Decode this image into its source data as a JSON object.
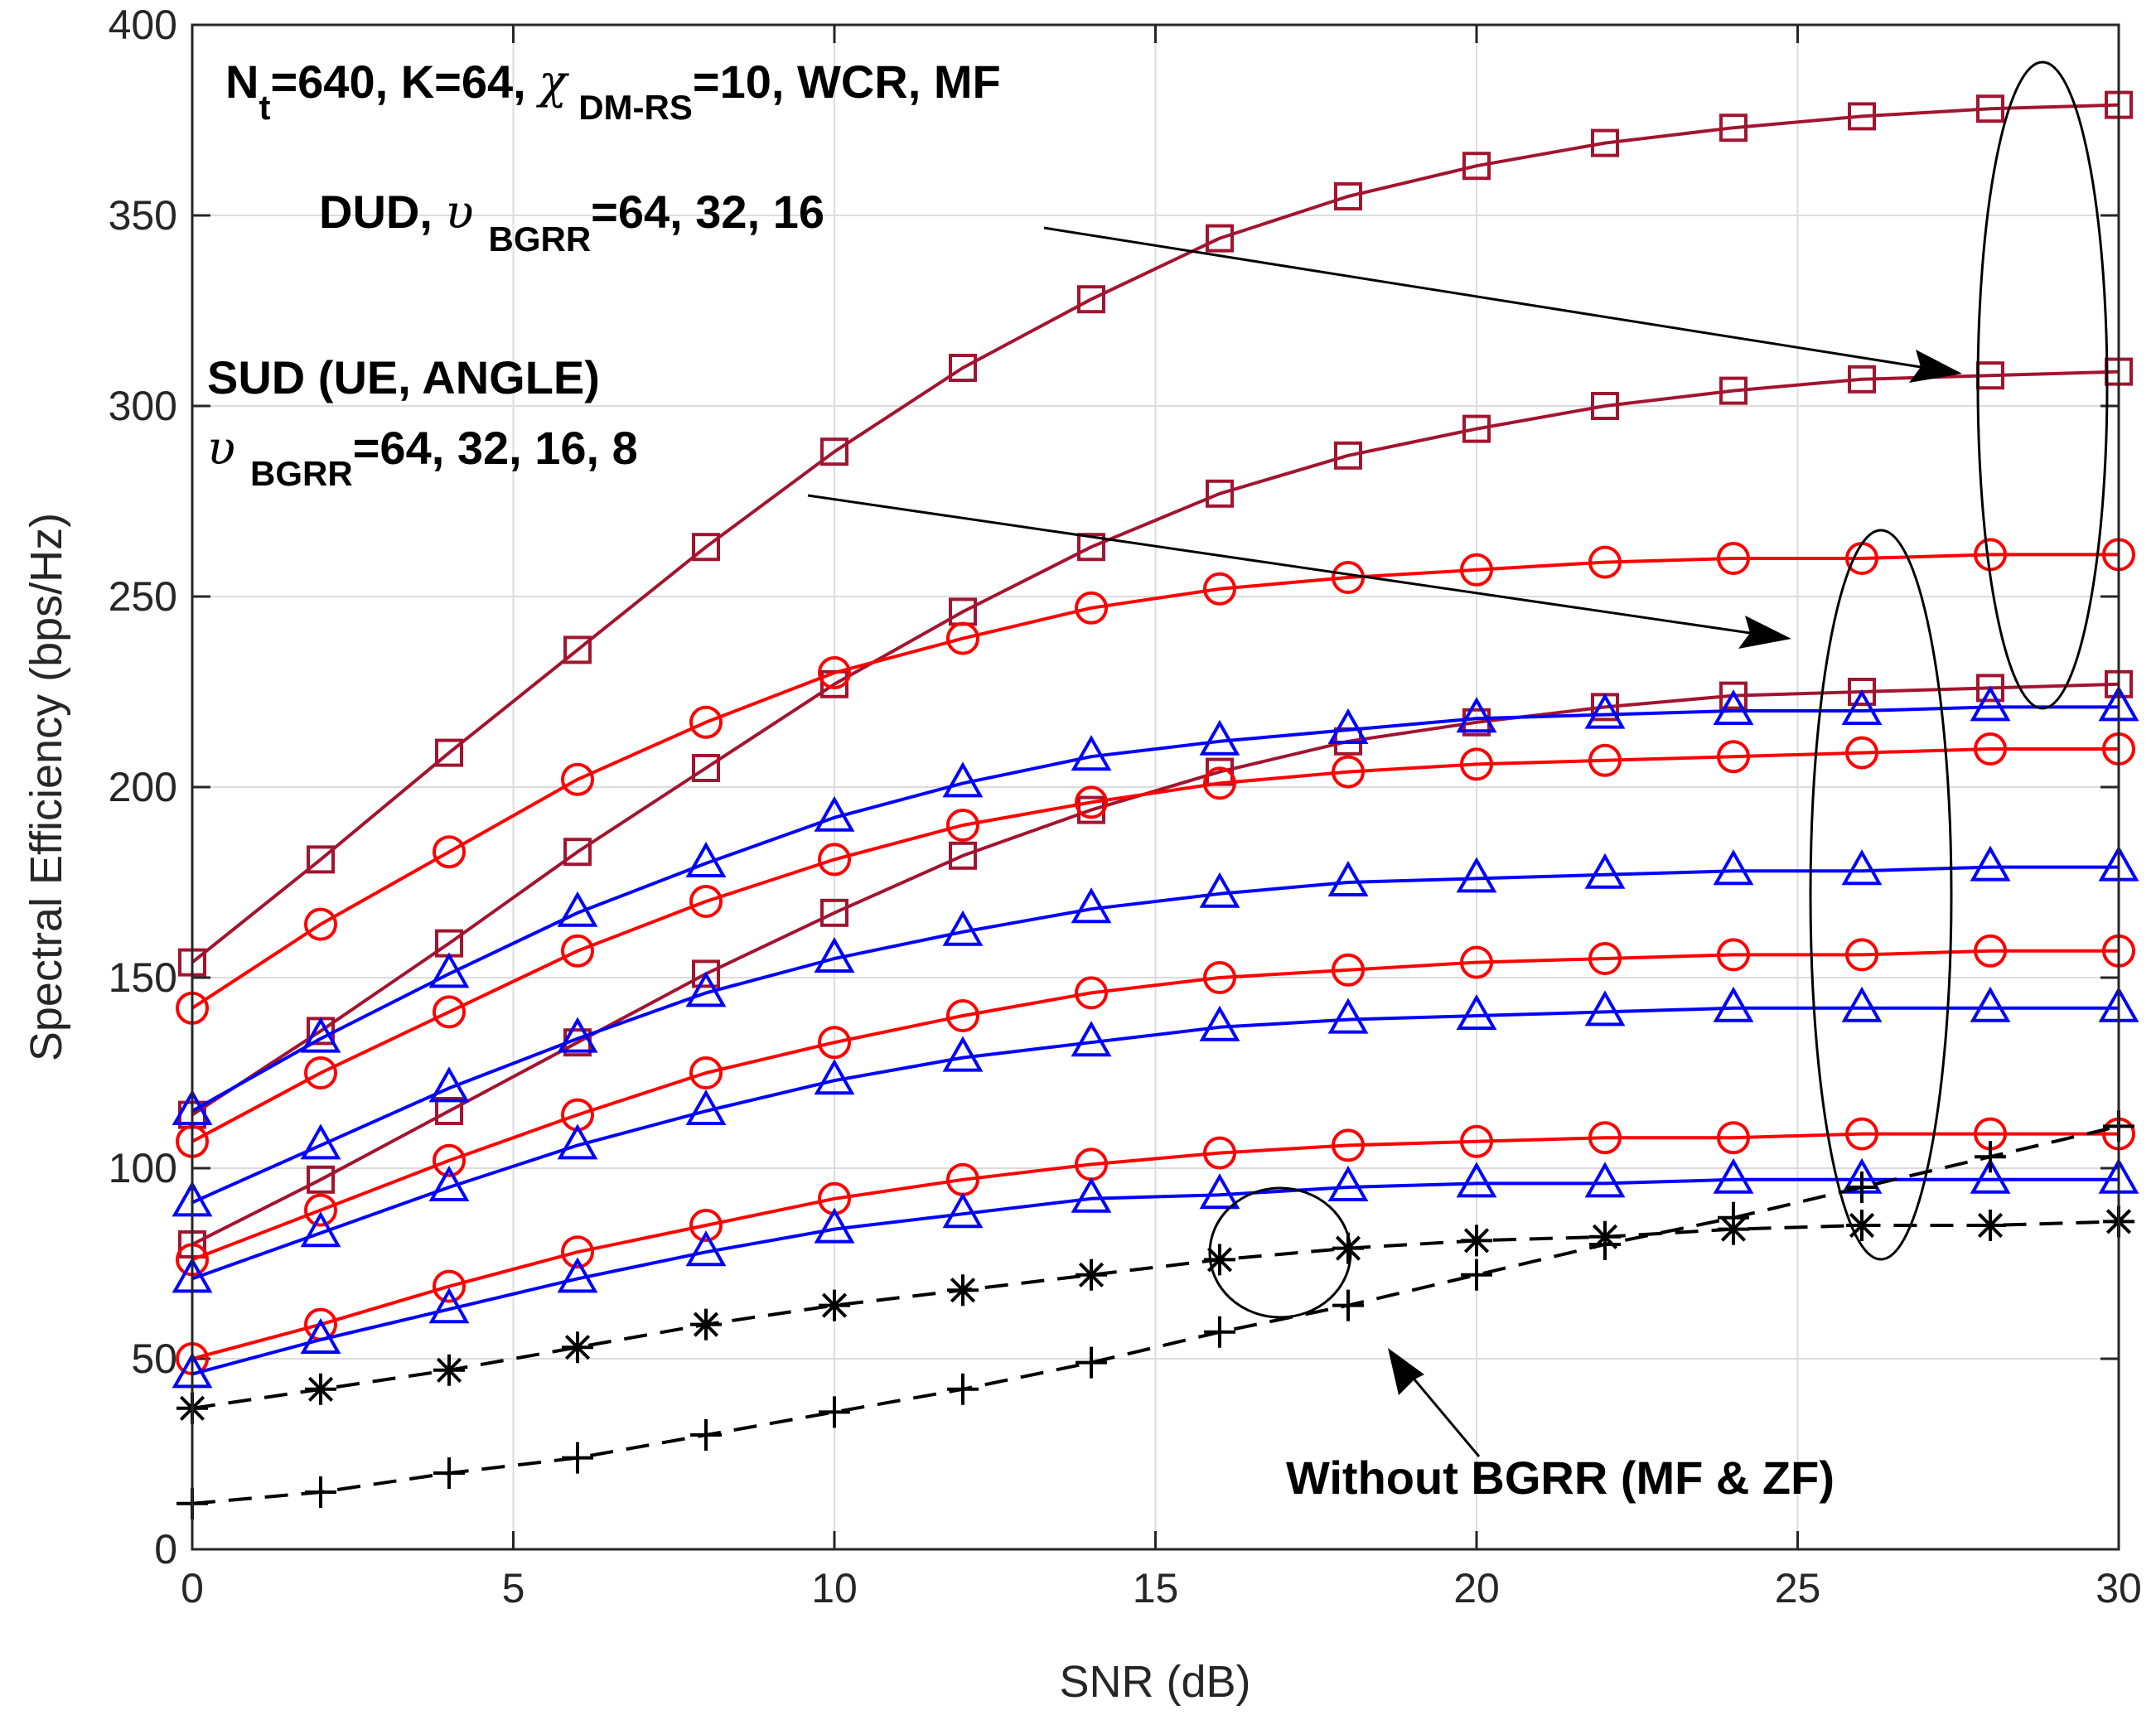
{
  "chart_data": {
    "type": "line",
    "xlabel": "SNR (dB)",
    "ylabel": "Spectral Efficiency (bps/Hz)",
    "xlim": [
      0,
      30
    ],
    "ylim": [
      0,
      400
    ],
    "xticks": [
      "0",
      "5",
      "10",
      "15",
      "20",
      "25",
      "30"
    ],
    "yticks": [
      "0",
      "50",
      "100",
      "150",
      "200",
      "250",
      "300",
      "350",
      "400"
    ],
    "grid": true,
    "x": [
      0,
      2,
      4,
      6,
      8,
      10,
      12,
      14,
      16,
      18,
      20,
      22,
      24,
      26,
      28,
      30
    ],
    "colors": {
      "dud": "#A2142F",
      "sud_red": "#FF0000",
      "sud_blue": "#0000FF",
      "black": "#000000"
    },
    "series": [
      {
        "name": "DUD BGRR=64",
        "group": "DUD",
        "marker": "square",
        "color": "#A2142F",
        "linestyle": "solid",
        "values": [
          154,
          181,
          209,
          236,
          263,
          288,
          310,
          328,
          344,
          355,
          363,
          369,
          373,
          376,
          378,
          379
        ]
      },
      {
        "name": "DUD BGRR=32",
        "group": "DUD",
        "marker": "square",
        "color": "#A2142F",
        "linestyle": "solid",
        "values": [
          114,
          136,
          159,
          183,
          205,
          227,
          246,
          263,
          277,
          287,
          294,
          300,
          304,
          307,
          308,
          309
        ]
      },
      {
        "name": "DUD BGRR=16",
        "group": "DUD",
        "marker": "square",
        "color": "#A2142F",
        "linestyle": "solid",
        "values": [
          80,
          97,
          115,
          133,
          151,
          167,
          182,
          194,
          204,
          212,
          217,
          221,
          224,
          225,
          226,
          227
        ]
      },
      {
        "name": "SUD (UE) BGRR=64",
        "group": "SUD",
        "marker": "circle",
        "color": "#FF0000",
        "linestyle": "solid",
        "values": [
          142,
          164,
          183,
          202,
          217,
          230,
          239,
          247,
          252,
          255,
          257,
          259,
          260,
          260,
          261,
          261
        ]
      },
      {
        "name": "SUD (UE) BGRR=32",
        "group": "SUD",
        "marker": "circle",
        "color": "#FF0000",
        "linestyle": "solid",
        "values": [
          107,
          125,
          141,
          157,
          170,
          181,
          190,
          196,
          201,
          204,
          206,
          207,
          208,
          209,
          210,
          210
        ]
      },
      {
        "name": "SUD (UE) BGRR=16",
        "group": "SUD",
        "marker": "circle",
        "color": "#FF0000",
        "linestyle": "solid",
        "values": [
          76,
          89,
          102,
          114,
          125,
          133,
          140,
          146,
          150,
          152,
          154,
          155,
          156,
          156,
          157,
          157
        ]
      },
      {
        "name": "SUD (UE) BGRR=8",
        "group": "SUD",
        "marker": "circle",
        "color": "#FF0000",
        "linestyle": "solid",
        "values": [
          50,
          59,
          69,
          78,
          85,
          92,
          97,
          101,
          104,
          106,
          107,
          108,
          108,
          109,
          109,
          109
        ]
      },
      {
        "name": "SUD (ANGLE) BGRR=64",
        "group": "SUD",
        "marker": "triangle",
        "color": "#0000FF",
        "linestyle": "solid",
        "values": [
          115,
          134,
          151,
          167,
          180,
          192,
          201,
          208,
          212,
          215,
          218,
          219,
          220,
          220,
          221,
          221
        ]
      },
      {
        "name": "SUD (ANGLE) BGRR=32",
        "group": "SUD",
        "marker": "triangle",
        "color": "#0000FF",
        "linestyle": "solid",
        "values": [
          91,
          106,
          121,
          134,
          146,
          155,
          162,
          168,
          172,
          175,
          176,
          177,
          178,
          178,
          179,
          179
        ]
      },
      {
        "name": "SUD (ANGLE) BGRR=16",
        "group": "SUD",
        "marker": "triangle",
        "color": "#0000FF",
        "linestyle": "solid",
        "values": [
          71,
          83,
          95,
          106,
          115,
          123,
          129,
          133,
          137,
          139,
          140,
          141,
          142,
          142,
          142,
          142
        ]
      },
      {
        "name": "SUD (ANGLE) BGRR=8",
        "group": "SUD",
        "marker": "triangle",
        "color": "#0000FF",
        "linestyle": "solid",
        "values": [
          46,
          55,
          63,
          71,
          78,
          84,
          88,
          92,
          93,
          95,
          96,
          96,
          97,
          97,
          97,
          97
        ]
      },
      {
        "name": "Without BGRR (MF)",
        "group": "Without",
        "marker": "asterisk",
        "color": "#000000",
        "linestyle": "dashed",
        "values": [
          37,
          42,
          47,
          53,
          59,
          64,
          68,
          72,
          76,
          79,
          81,
          82,
          84,
          85,
          85,
          86
        ]
      },
      {
        "name": "Without BGRR (ZF)",
        "group": "Without",
        "marker": "plus",
        "color": "#000000",
        "linestyle": "dashed",
        "values": [
          12,
          15,
          20,
          24,
          30,
          36,
          42,
          49,
          57,
          64,
          72,
          80,
          87,
          95,
          103,
          111
        ]
      }
    ]
  },
  "annotations": {
    "params": {
      "n": "N",
      "n_sub": "t",
      "rest1": "=640, K=64, ",
      "chi": "χ",
      "chi_sub": "DM-RS",
      "rest2": "=10, WCR, MF"
    },
    "dud": {
      "prefix": "DUD, ",
      "upsilon": "υ",
      "sub": "BGRR",
      "values": "=64, 32, 16"
    },
    "sud": {
      "line1": "SUD (UE, ANGLE)",
      "upsilon": "υ",
      "sub": "BGRR",
      "values": "=64, 32, 16, 8"
    },
    "without": "Without BGRR (MF & ZF)"
  }
}
